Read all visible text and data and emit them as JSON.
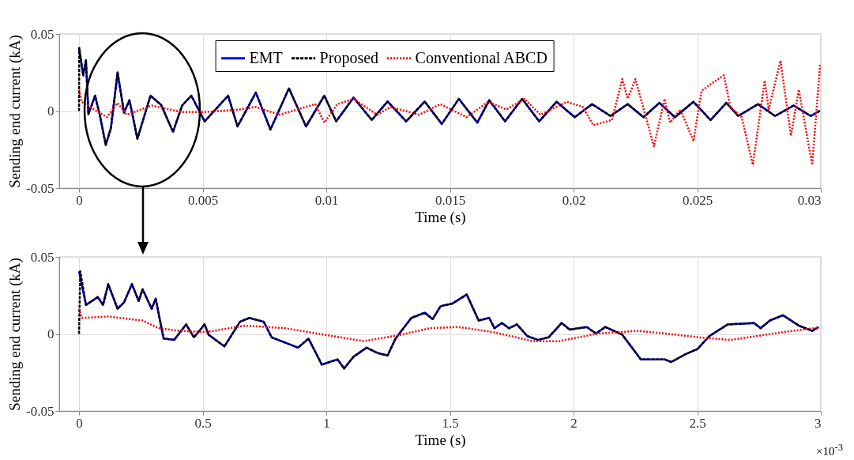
{
  "chart_data": [
    {
      "type": "line",
      "xlabel": "Time (s)",
      "ylabel": "Sending end current (kA)",
      "xlim": [
        -0.0008,
        0.03
      ],
      "ylim": [
        -0.05,
        0.05
      ],
      "xticks": [
        0,
        0.005,
        0.01,
        0.015,
        0.02,
        0.025,
        0.03
      ],
      "yticks": [
        -0.05,
        0,
        0.05
      ],
      "grid": true,
      "legend": "top",
      "series": [
        {
          "name": "EMT",
          "color": "#0000ff",
          "line_style": "solid",
          "x": [
            0,
            0.00017,
            0.00028,
            0.00038,
            0.00065,
            0.00086,
            0.00108,
            0.00129,
            0.00156,
            0.00182,
            0.00204,
            0.00236,
            0.00289,
            0.00332,
            0.0038,
            0.00417,
            0.00454,
            0.00508,
            0.00603,
            0.00641,
            0.00715,
            0.00774,
            0.00849,
            0.00918,
            0.00992,
            0.0104,
            0.0111,
            0.01184,
            0.01248,
            0.01323,
            0.01398,
            0.01467,
            0.01536,
            0.01611,
            0.01659,
            0.01723,
            0.01792,
            0.01861,
            0.01931,
            0.02005,
            0.02075,
            0.02149,
            0.02219,
            0.02283,
            0.02347,
            0.0241,
            0.02485,
            0.02554,
            0.02618,
            0.02666,
            0.02746,
            0.02815,
            0.0289,
            0.02959,
            0.02997
          ],
          "values": [
            0.041,
            0.023,
            0.033,
            -0.002,
            0.01,
            -0.004,
            -0.022,
            -0.011,
            0.025,
            -0.001,
            0.007,
            -0.018,
            0.01,
            0.004,
            -0.0135,
            0.0036,
            0.01,
            -0.0067,
            0.01,
            -0.01,
            0.012,
            -0.012,
            0.0147,
            -0.01,
            0.01,
            -0.0067,
            0.0087,
            -0.0058,
            0.0062,
            -0.0067,
            0.0062,
            -0.0084,
            0.0079,
            -0.0075,
            0.007,
            -0.0067,
            0.0079,
            -0.0067,
            0.006,
            -0.004,
            0.0045,
            -0.0032,
            0.0045,
            -0.004,
            0.0053,
            -0.004,
            0.006,
            -0.0058,
            0.0053,
            -0.0032,
            0.0045,
            -0.0032,
            0.0036,
            -0.0032,
            0.0002
          ]
        },
        {
          "name": "Proposed",
          "color": "#000000",
          "line_style": "dashed",
          "x": [
            0,
            1e-05,
            0.00017,
            0.00028,
            0.00038,
            0.00065,
            0.00086,
            0.00108,
            0.00129,
            0.00156,
            0.00182,
            0.00204,
            0.00236,
            0.00289,
            0.00332,
            0.0038,
            0.00417,
            0.00454,
            0.00508,
            0.00603,
            0.00641,
            0.00715,
            0.00774,
            0.00849,
            0.00918,
            0.00992,
            0.0104,
            0.0111,
            0.01184,
            0.01248,
            0.01323,
            0.01398,
            0.01467,
            0.01536,
            0.01611,
            0.01659,
            0.01723,
            0.01792,
            0.01861,
            0.01931,
            0.02005,
            0.02075,
            0.02149,
            0.02219,
            0.02283,
            0.02347,
            0.0241,
            0.02485,
            0.02554,
            0.02618,
            0.02666,
            0.02746,
            0.02815,
            0.0289,
            0.02959,
            0.02997
          ],
          "values": [
            0,
            0.041,
            0.023,
            0.033,
            -0.002,
            0.01,
            -0.004,
            -0.022,
            -0.011,
            0.025,
            -0.001,
            0.007,
            -0.018,
            0.01,
            0.004,
            -0.0135,
            0.0036,
            0.01,
            -0.0067,
            0.01,
            -0.01,
            0.012,
            -0.012,
            0.0147,
            -0.01,
            0.01,
            -0.0067,
            0.0087,
            -0.0058,
            0.0062,
            -0.0067,
            0.0062,
            -0.0084,
            0.0079,
            -0.0075,
            0.007,
            -0.0067,
            0.0079,
            -0.0067,
            0.006,
            -0.004,
            0.0045,
            -0.0032,
            0.0045,
            -0.004,
            0.0053,
            -0.004,
            0.006,
            -0.0058,
            0.0053,
            -0.0032,
            0.0045,
            -0.0032,
            0.0036,
            -0.0032,
            0.0002
          ]
        },
        {
          "name": "Conventional ABCD",
          "color": "#ff0000",
          "line_style": "dotted",
          "x": [
            0,
            0.0001,
            0.00113,
            0.00156,
            0.00193,
            0.00294,
            0.00417,
            0.00503,
            0.0065,
            0.00715,
            0.00811,
            0.00955,
            0.00992,
            0.01045,
            0.01111,
            0.01206,
            0.01259,
            0.01376,
            0.01461,
            0.01568,
            0.01654,
            0.01728,
            0.01802,
            0.01866,
            0.01973,
            0.02037,
            0.0208,
            0.02155,
            0.02197,
            0.02219,
            0.0225,
            0.02325,
            0.02368,
            0.0239,
            0.02432,
            0.02485,
            0.02517,
            0.0256,
            0.02608,
            0.02634,
            0.0268,
            0.02725,
            0.02773,
            0.02789,
            0.02837,
            0.02879,
            0.02911,
            0.02965,
            0.02997
          ],
          "values": [
            0.0137,
            0.006,
            -0.004,
            0.0053,
            -0.0024,
            0.0036,
            -0.0007,
            -0.0007,
            0.001,
            0.0027,
            -0.0024,
            0.0045,
            -0.0075,
            0.0045,
            0.0079,
            -0.0024,
            0.0027,
            -0.0024,
            0.0045,
            -0.004,
            0.006,
            0.001,
            0.0079,
            -0.0024,
            0.006,
            0.0027,
            -0.0092,
            -0.0058,
            0.0207,
            0.008,
            0.0207,
            -0.0229,
            0.0079,
            -0.0075,
            0.001,
            -0.0195,
            0.013,
            0.0181,
            0.0232,
            0.0027,
            -0.004,
            -0.0349,
            0.0198,
            0.001,
            0.0327,
            -0.016,
            0.0138,
            -0.0349,
            0.0301
          ]
        }
      ]
    },
    {
      "type": "line",
      "xlabel": "Time (s)",
      "ylabel": "Sending end current (kA)",
      "xlim": [
        -0.08,
        3
      ],
      "ylim": [
        -0.05,
        0.05
      ],
      "xticks": [
        0,
        0.5,
        1,
        1.5,
        2,
        2.5,
        3
      ],
      "yticks": [
        -0.05,
        0,
        0.05
      ],
      "grid": true,
      "legend": false,
      "annotations": [
        "×10$^{-3}$"
      ],
      "series": [
        {
          "color": "#0000ff",
          "line_style": "solid",
          "x": [
            0,
            0.028,
            0.076,
            0.097,
            0.118,
            0.156,
            0.182,
            0.214,
            0.241,
            0.257,
            0.294,
            0.31,
            0.342,
            0.385,
            0.433,
            0.465,
            0.508,
            0.524,
            0.588,
            0.651,
            0.689,
            0.747,
            0.779,
            0.886,
            0.928,
            0.982,
            1.046,
            1.072,
            1.11,
            1.163,
            1.206,
            1.248,
            1.28,
            1.344,
            1.398,
            1.43,
            1.462,
            1.51,
            1.568,
            1.616,
            1.659,
            1.68,
            1.71,
            1.739,
            1.771,
            1.813,
            1.856,
            1.899,
            1.952,
            1.984,
            2.053,
            2.091,
            2.128,
            2.197,
            2.272,
            2.368,
            2.395,
            2.453,
            2.501,
            2.549,
            2.624,
            2.73,
            2.757,
            2.794,
            2.847,
            2.911,
            2.965,
            2.991
          ],
          "values": [
            0.0407,
            0.0188,
            0.0239,
            0.0188,
            0.0323,
            0.0163,
            0.0205,
            0.0323,
            0.0214,
            0.029,
            0.0163,
            0.023,
            -0.003,
            -0.0039,
            0.0062,
            -0.0022,
            0.0062,
            -0.0005,
            -0.0081,
            0.0079,
            0.0104,
            0.0079,
            -0.0022,
            -0.0089,
            -0.003,
            -0.0199,
            -0.0165,
            -0.0224,
            -0.0148,
            -0.0089,
            -0.0123,
            -0.014,
            -0.003,
            0.0104,
            0.0138,
            0.0096,
            0.018,
            0.0197,
            0.0256,
            0.0087,
            0.0104,
            0.0037,
            0.0071,
            0.0037,
            0.0062,
            -0.0014,
            -0.0039,
            -0.0022,
            0.0071,
            0.0028,
            0.0045,
            0.0003,
            0.0045,
            -0.0005,
            -0.0165,
            -0.0165,
            -0.0182,
            -0.0131,
            -0.0098,
            -0.0014,
            0.0062,
            0.0071,
            0.0037,
            0.0087,
            0.0121,
            0.0054,
            0.002,
            0.0045
          ]
        },
        {
          "color": "#000000",
          "line_style": "dashed",
          "x": [
            0,
            0.005,
            0.028,
            0.076,
            0.097,
            0.118,
            0.156,
            0.182,
            0.214,
            0.241,
            0.257,
            0.294,
            0.31,
            0.342,
            0.385,
            0.433,
            0.465,
            0.508,
            0.524,
            0.588,
            0.651,
            0.689,
            0.747,
            0.779,
            0.886,
            0.928,
            0.982,
            1.046,
            1.072,
            1.11,
            1.163,
            1.206,
            1.248,
            1.28,
            1.344,
            1.398,
            1.43,
            1.462,
            1.51,
            1.568,
            1.616,
            1.659,
            1.68,
            1.71,
            1.739,
            1.771,
            1.813,
            1.856,
            1.899,
            1.952,
            1.984,
            2.053,
            2.091,
            2.128,
            2.197,
            2.272,
            2.368,
            2.395,
            2.453,
            2.501,
            2.549,
            2.624,
            2.73,
            2.757,
            2.794,
            2.847,
            2.911,
            2.965,
            2.991
          ],
          "values": [
            0,
            0.0407,
            0.0188,
            0.0239,
            0.0188,
            0.0323,
            0.0163,
            0.0205,
            0.0323,
            0.0214,
            0.029,
            0.0163,
            0.023,
            -0.003,
            -0.0039,
            0.0062,
            -0.0022,
            0.0062,
            -0.0005,
            -0.0081,
            0.0079,
            0.0104,
            0.0079,
            -0.0022,
            -0.0089,
            -0.003,
            -0.0199,
            -0.0165,
            -0.0224,
            -0.0148,
            -0.0089,
            -0.0123,
            -0.014,
            -0.003,
            0.0104,
            0.0138,
            0.0096,
            0.018,
            0.0197,
            0.0256,
            0.0087,
            0.0104,
            0.0037,
            0.0071,
            0.0037,
            0.0062,
            -0.0014,
            -0.0039,
            -0.0022,
            0.0071,
            0.0028,
            0.0045,
            0.0003,
            0.0045,
            -0.0005,
            -0.0165,
            -0.0165,
            -0.0182,
            -0.0131,
            -0.0098,
            -0.0014,
            0.0062,
            0.0071,
            0.0037,
            0.0087,
            0.0121,
            0.0054,
            0.002,
            0.0045
          ]
        },
        {
          "color": "#ff0000",
          "line_style": "dotted",
          "x": [
            0,
            0.011,
            0.118,
            0.257,
            0.321,
            0.406,
            0.513,
            0.673,
            0.833,
            0.992,
            1.152,
            1.302,
            1.419,
            1.526,
            1.568,
            1.675,
            1.835,
            1.941,
            2.101,
            2.261,
            2.368,
            2.506,
            2.634,
            2.741,
            2.847,
            2.986
          ],
          "values": [
            0.0163,
            0.0104,
            0.0113,
            0.0087,
            0.0037,
            0.002,
            0.0012,
            0.0054,
            0.0037,
            -0.0005,
            -0.0047,
            -0.0005,
            0.0037,
            0.0045,
            0.0037,
            0.0012,
            -0.0047,
            -0.0047,
            0.0003,
            0.002,
            0.0003,
            -0.0022,
            -0.0039,
            -0.0014,
            0.0012,
            0.004
          ]
        }
      ]
    }
  ]
}
